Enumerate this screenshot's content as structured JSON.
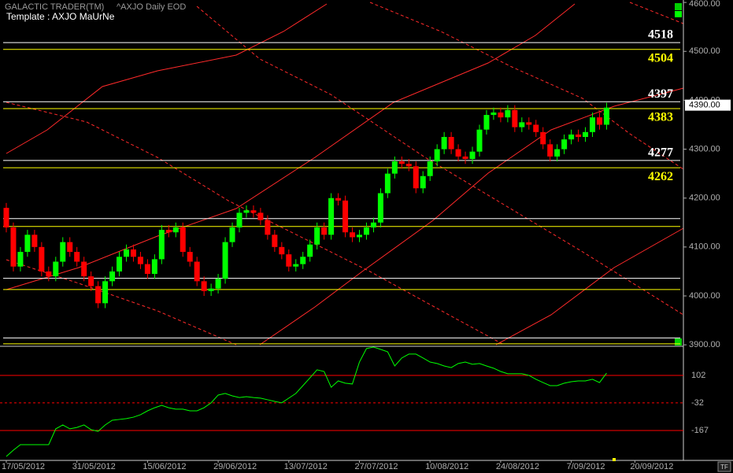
{
  "chart_data": [
    {
      "type": "candlestick",
      "title": "GALACTIC TRADER(TM)",
      "subtitle": "^AXJO Daily EOD",
      "annotation": "Template : AXJO MaUrNe",
      "up_color": "#00ff00",
      "down_color": "#ff0000",
      "ylim": [
        3897,
        4605
      ],
      "yticks": [
        {
          "value": 4600,
          "label": "4600.00"
        },
        {
          "value": 4500,
          "label": "4500.00"
        },
        {
          "value": 4400,
          "label": "4400.00"
        },
        {
          "value": 4300,
          "label": "4300.00"
        },
        {
          "value": 4200,
          "label": "4200.00"
        },
        {
          "value": 4100,
          "label": "4100.00"
        },
        {
          "value": 4000,
          "label": "4000.00"
        },
        {
          "value": 3900,
          "label": "3900.00"
        }
      ],
      "last_price": {
        "value": 4390,
        "label": "4390.00"
      },
      "labeled_levels": [
        {
          "value": 4518,
          "color": "#ffffff"
        },
        {
          "value": 4504,
          "color": "#ffff00"
        },
        {
          "value": 4397,
          "color": "#ffffff"
        },
        {
          "value": 4383,
          "color": "#ffff00"
        },
        {
          "value": 4277,
          "color": "#ffffff"
        },
        {
          "value": 4262,
          "color": "#ffff00"
        }
      ],
      "levels": [
        {
          "value": 4158,
          "color": "#ffffff"
        },
        {
          "value": 4142,
          "color": "#ffff00"
        },
        {
          "value": 4036,
          "color": "#ffffff"
        },
        {
          "value": 4013,
          "color": "#ffff00"
        },
        {
          "value": 3914,
          "color": "#ffffff"
        },
        {
          "value": 3902,
          "color": "#ffff00"
        }
      ],
      "categories": [
        "17/05/2012",
        null,
        null,
        null,
        null,
        null,
        null,
        null,
        null,
        null,
        "31/05/2012",
        null,
        null,
        null,
        null,
        null,
        null,
        null,
        null,
        null,
        "15/06/2012",
        null,
        null,
        null,
        null,
        null,
        null,
        null,
        null,
        null,
        "29/06/2012",
        null,
        null,
        null,
        null,
        null,
        null,
        null,
        null,
        null,
        "13/07/2012",
        null,
        null,
        null,
        null,
        null,
        null,
        null,
        null,
        null,
        "27/07/2012",
        null,
        null,
        null,
        null,
        null,
        null,
        null,
        null,
        null,
        "10/08/2012",
        null,
        null,
        null,
        null,
        null,
        null,
        null,
        null,
        null,
        "24/08/2012",
        null,
        null,
        null,
        null,
        null,
        null,
        null,
        null,
        null,
        "7/09/2012",
        null,
        null,
        null,
        null,
        null,
        null,
        null,
        null,
        "20/09/2012",
        null,
        null,
        null,
        null,
        null,
        null
      ],
      "open": [
        4180,
        4140,
        4060,
        4090,
        4125,
        4100,
        4050,
        4040,
        4070,
        4110,
        4090,
        4070,
        4040,
        4020,
        3985,
        4030,
        4050,
        4080,
        4095,
        4080,
        4065,
        4045,
        4075,
        4135,
        4130,
        4140,
        4090,
        4070,
        4030,
        4010,
        4015,
        4035,
        4110,
        4140,
        4170,
        4175,
        4170,
        4155,
        4125,
        4100,
        4085,
        4060,
        4065,
        4080,
        4105,
        4140,
        4125,
        4200,
        4195,
        4130,
        4120,
        4125,
        4140,
        4150,
        4210,
        4250,
        4275,
        4270,
        4265,
        4220,
        4245,
        4275,
        4300,
        4325,
        4300,
        4285,
        4280,
        4295,
        4340,
        4370,
        4375,
        4365,
        4380,
        4345,
        4355,
        4350,
        4335,
        4310,
        4285,
        4300,
        4320,
        4330,
        4325,
        4335,
        4365,
        4350,
        null,
        null,
        null,
        null,
        null,
        null,
        null,
        null,
        null,
        null
      ],
      "high": [
        4190,
        4150,
        4100,
        4135,
        4135,
        4110,
        4060,
        4080,
        4120,
        4120,
        4100,
        4080,
        4050,
        4030,
        4040,
        4060,
        4090,
        4105,
        4105,
        4090,
        4075,
        4085,
        4145,
        4145,
        4150,
        4150,
        4100,
        4080,
        4040,
        4025,
        4045,
        4120,
        4150,
        4180,
        4185,
        4185,
        4180,
        4165,
        4135,
        4110,
        4095,
        4075,
        4090,
        4115,
        4150,
        4150,
        4210,
        4210,
        4205,
        4140,
        4135,
        4150,
        4160,
        4220,
        4260,
        4285,
        4285,
        4280,
        4275,
        4255,
        4285,
        4310,
        4335,
        4335,
        4310,
        4295,
        4305,
        4350,
        4380,
        4385,
        4385,
        4390,
        4390,
        4365,
        4365,
        4360,
        4345,
        4320,
        4310,
        4330,
        4340,
        4340,
        4345,
        4375,
        4375,
        4395,
        null,
        null,
        null,
        null,
        null,
        null,
        null,
        null,
        null,
        null
      ],
      "low": [
        4130,
        4050,
        4050,
        4080,
        4090,
        4040,
        4030,
        4030,
        4060,
        4080,
        4060,
        4030,
        4010,
        3975,
        3975,
        4020,
        4040,
        4070,
        4070,
        4055,
        4035,
        4035,
        4065,
        4120,
        4120,
        4080,
        4060,
        4020,
        4000,
        4000,
        4005,
        4025,
        4100,
        4130,
        4160,
        4160,
        4145,
        4115,
        4090,
        4075,
        4050,
        4050,
        4055,
        4070,
        4095,
        4115,
        4115,
        4185,
        4120,
        4110,
        4110,
        4115,
        4130,
        4140,
        4200,
        4240,
        4260,
        4255,
        4210,
        4210,
        4235,
        4265,
        4290,
        4290,
        4275,
        4270,
        4270,
        4285,
        4330,
        4360,
        4355,
        4355,
        4335,
        4335,
        4340,
        4325,
        4300,
        4275,
        4275,
        4290,
        4310,
        4315,
        4315,
        4325,
        4340,
        4340,
        null,
        null,
        null,
        null,
        null,
        null,
        null,
        null,
        null,
        null
      ],
      "close": [
        4140,
        4060,
        4090,
        4125,
        4100,
        4050,
        4040,
        4070,
        4110,
        4090,
        4070,
        4040,
        4020,
        3985,
        4030,
        4050,
        4080,
        4095,
        4080,
        4065,
        4045,
        4075,
        4135,
        4130,
        4140,
        4090,
        4070,
        4030,
        4010,
        4015,
        4035,
        4110,
        4140,
        4170,
        4175,
        4170,
        4155,
        4125,
        4100,
        4085,
        4060,
        4065,
        4080,
        4105,
        4140,
        4125,
        4200,
        4195,
        4130,
        4120,
        4125,
        4140,
        4150,
        4210,
        4250,
        4275,
        4270,
        4265,
        4220,
        4245,
        4275,
        4300,
        4325,
        4300,
        4285,
        4280,
        4295,
        4340,
        4370,
        4375,
        4365,
        4380,
        4345,
        4355,
        4350,
        4335,
        4310,
        4285,
        4300,
        4320,
        4330,
        4325,
        4335,
        4365,
        4350,
        4385,
        null,
        null,
        null,
        null,
        null,
        null,
        null,
        null,
        null,
        null
      ]
    },
    {
      "type": "line",
      "color": "#00ff00",
      "grid_color": "#ff0000",
      "ylim": [
        -313,
        244
      ],
      "yticks": [
        102,
        -32,
        -167
      ],
      "tick_line_styles": [
        "solid",
        "dashed",
        "solid"
      ],
      "values": [
        -294,
        -263,
        -236,
        -236,
        -236,
        -236,
        -236,
        -159,
        -140,
        -159,
        -152,
        -140,
        -163,
        -171,
        -140,
        -117,
        -113,
        -109,
        -102,
        -90,
        -71,
        -56,
        -44,
        -56,
        -63,
        -63,
        -71,
        -71,
        -56,
        -32,
        6,
        14,
        2,
        -6,
        -2,
        -6,
        -9,
        -17,
        -25,
        -32,
        -9,
        14,
        52,
        90,
        129,
        121,
        44,
        75,
        64,
        60,
        167,
        233,
        240,
        229,
        217,
        148,
        187,
        206,
        206,
        187,
        167,
        160,
        148,
        140,
        160,
        167,
        156,
        160,
        148,
        137,
        121,
        110,
        110,
        110,
        102,
        83,
        67,
        52,
        52,
        64,
        71,
        75,
        75,
        83,
        67,
        113,
        null,
        null,
        null,
        null,
        null,
        null,
        null,
        null,
        null,
        null
      ]
    }
  ]
}
